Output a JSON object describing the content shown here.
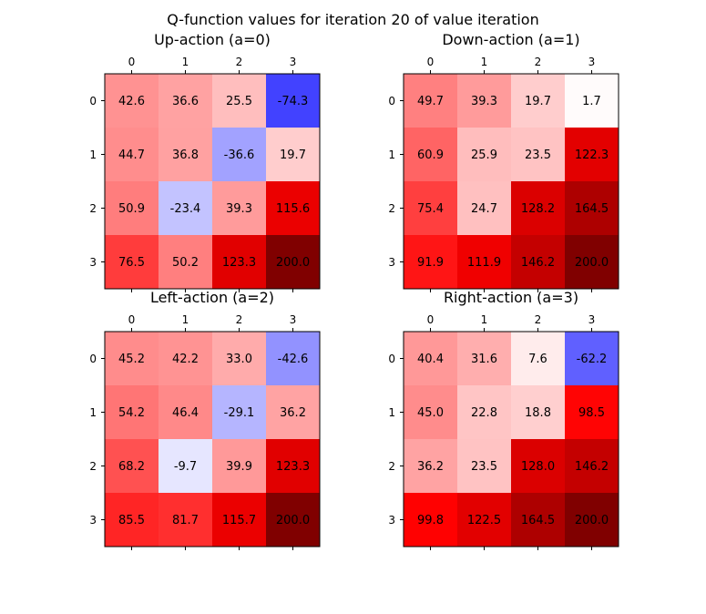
{
  "figure": {
    "suptitle": "Q-function values for iteration 20 of value iteration"
  },
  "chart_data": [
    {
      "type": "heatmap",
      "title": "Up-action (a=0)",
      "colormap": "seismic",
      "vmin": -200,
      "vmax": 200,
      "x_ticks": [
        "0",
        "1",
        "2",
        "3"
      ],
      "y_ticks": [
        "0",
        "1",
        "2",
        "3"
      ],
      "values": [
        [
          42.6,
          36.6,
          25.5,
          -74.3
        ],
        [
          44.7,
          36.8,
          -36.6,
          19.7
        ],
        [
          50.9,
          -23.4,
          39.3,
          115.6
        ],
        [
          76.5,
          50.2,
          123.3,
          200.0
        ]
      ]
    },
    {
      "type": "heatmap",
      "title": "Down-action (a=1)",
      "colormap": "seismic",
      "vmin": -200,
      "vmax": 200,
      "x_ticks": [
        "0",
        "1",
        "2",
        "3"
      ],
      "y_ticks": [
        "0",
        "1",
        "2",
        "3"
      ],
      "values": [
        [
          49.7,
          39.3,
          19.7,
          1.7
        ],
        [
          60.9,
          25.9,
          23.5,
          122.3
        ],
        [
          75.4,
          24.7,
          128.2,
          164.5
        ],
        [
          91.9,
          111.9,
          146.2,
          200.0
        ]
      ]
    },
    {
      "type": "heatmap",
      "title": "Left-action (a=2)",
      "colormap": "seismic",
      "vmin": -200,
      "vmax": 200,
      "x_ticks": [
        "0",
        "1",
        "2",
        "3"
      ],
      "y_ticks": [
        "0",
        "1",
        "2",
        "3"
      ],
      "values": [
        [
          45.2,
          42.2,
          33.0,
          -42.6
        ],
        [
          54.2,
          46.4,
          -29.1,
          36.2
        ],
        [
          68.2,
          -9.7,
          39.9,
          123.3
        ],
        [
          85.5,
          81.7,
          115.7,
          200.0
        ]
      ]
    },
    {
      "type": "heatmap",
      "title": "Right-action (a=3)",
      "colormap": "seismic",
      "vmin": -200,
      "vmax": 200,
      "x_ticks": [
        "0",
        "1",
        "2",
        "3"
      ],
      "y_ticks": [
        "0",
        "1",
        "2",
        "3"
      ],
      "values": [
        [
          40.4,
          31.6,
          7.6,
          -62.2
        ],
        [
          45.0,
          22.8,
          18.8,
          98.5
        ],
        [
          36.2,
          23.5,
          128.0,
          146.2
        ],
        [
          99.8,
          122.5,
          164.5,
          200.0
        ]
      ]
    }
  ]
}
